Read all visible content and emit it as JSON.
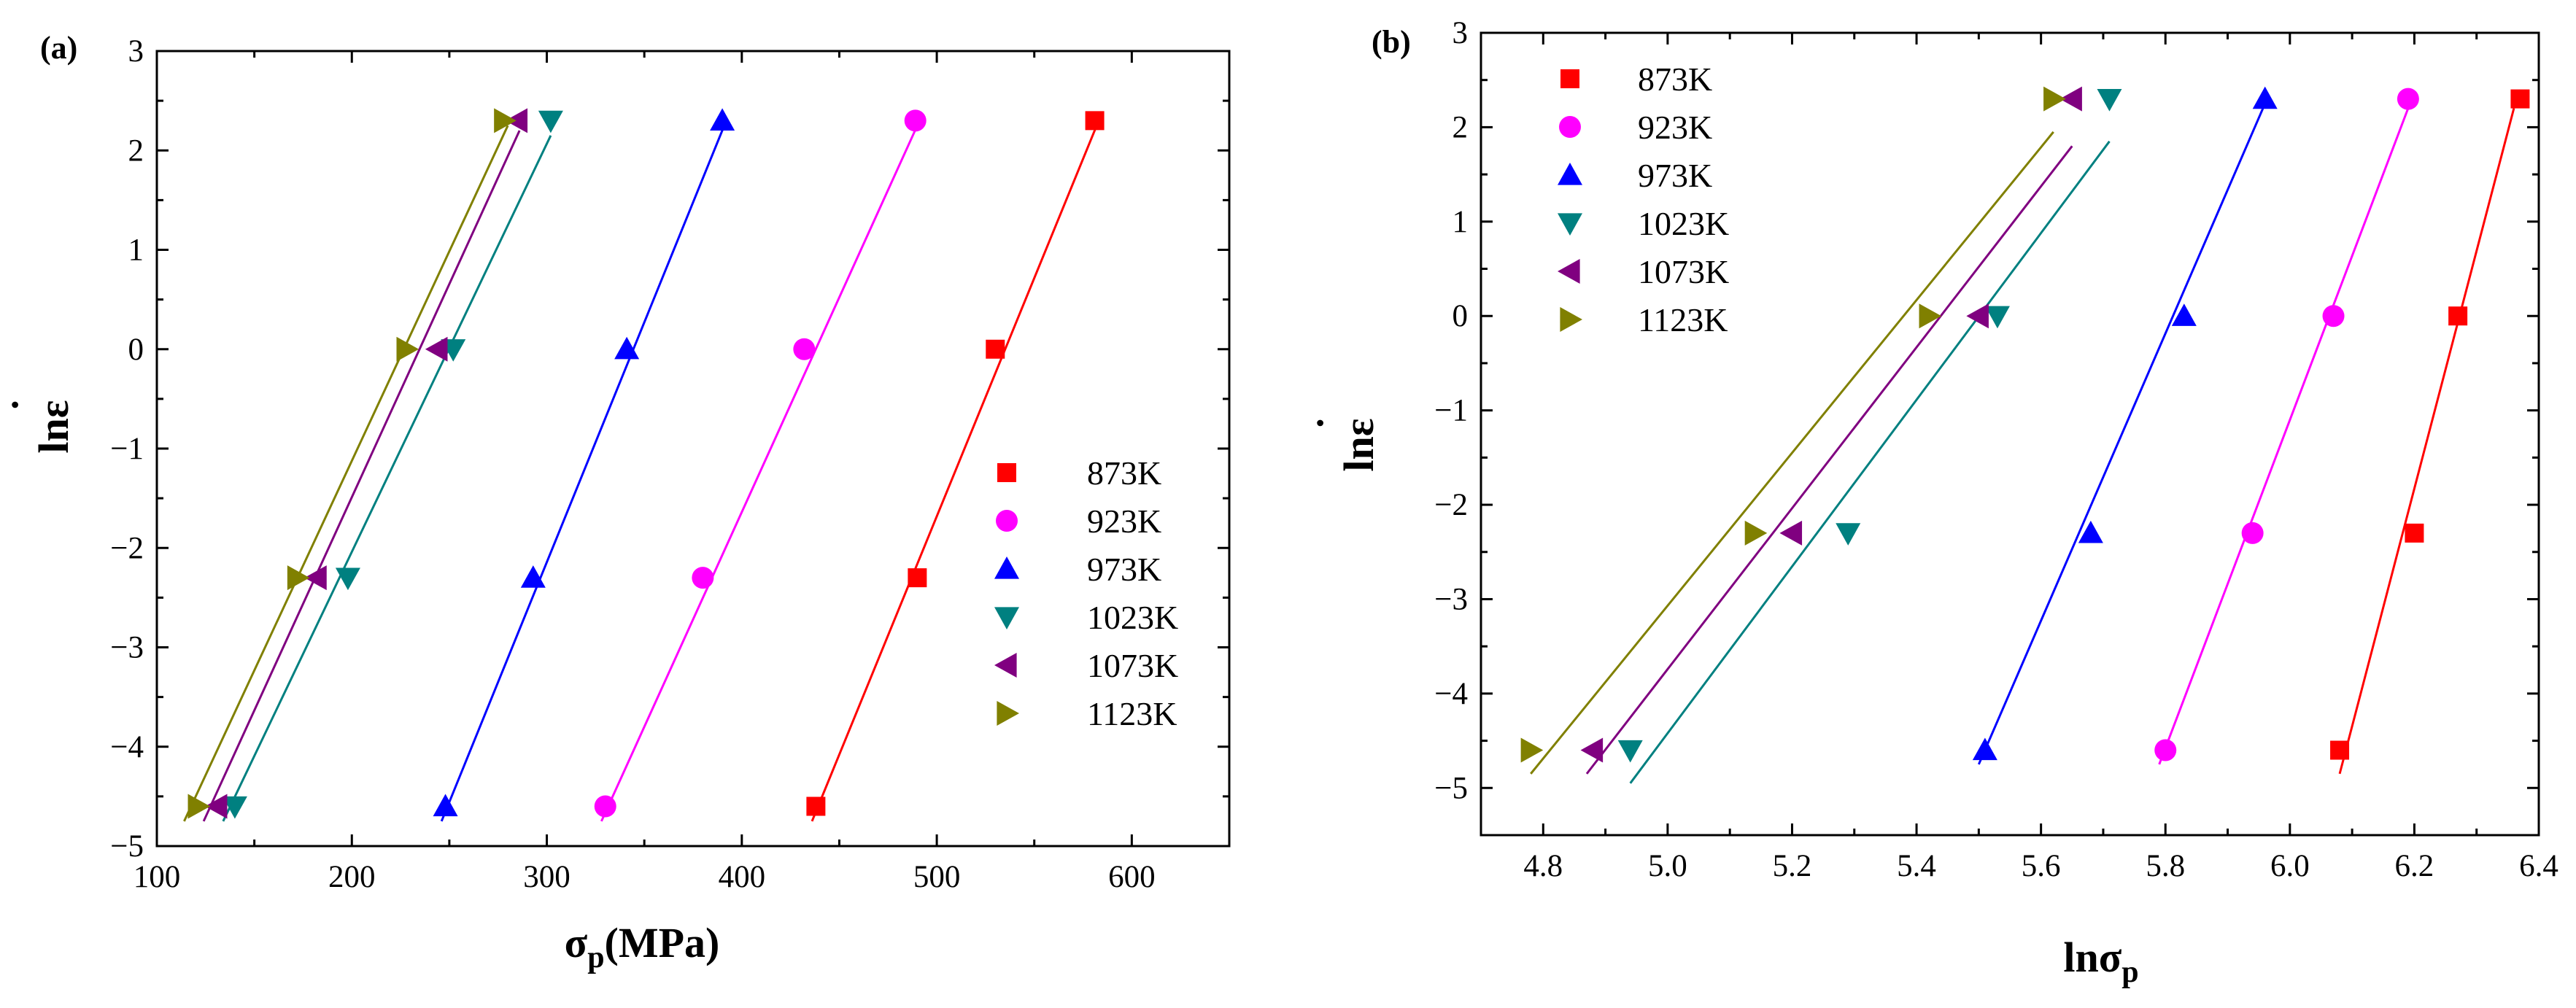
{
  "chart_data": [
    {
      "panel_label": "(a)",
      "type": "scatter",
      "xlabel": {
        "main": "σ",
        "sub": "p",
        "rest": "(MPa)"
      },
      "ylabel": {
        "main": "lnε",
        "dot": "˙"
      },
      "xlim": [
        100,
        650
      ],
      "ylim": [
        -5,
        3
      ],
      "xticks": [
        100,
        200,
        300,
        400,
        500,
        600
      ],
      "yticks": [
        -5,
        -4,
        -3,
        -2,
        -1,
        0,
        1,
        2,
        3
      ],
      "xtick_labels": [
        "100",
        "200",
        "300",
        "400",
        "500",
        "600"
      ],
      "ytick_labels": [
        "−5",
        "−4",
        "−3",
        "−2",
        "−1",
        "0",
        "1",
        "2",
        "3"
      ],
      "legend_position": "bottom-right",
      "series": [
        {
          "name": "873K",
          "marker": "square",
          "color": "#ff0000",
          "x": [
            438,
            490,
            530,
            581
          ],
          "y": [
            -4.6,
            -2.3,
            0,
            2.3
          ],
          "fit": [
            [
              436,
              -4.75
            ],
            [
              582,
              2.25
            ]
          ]
        },
        {
          "name": "923K",
          "marker": "circle",
          "color": "#ff00ff",
          "x": [
            330,
            380,
            432,
            489
          ],
          "y": [
            -4.6,
            -2.3,
            0,
            2.3
          ],
          "fit": [
            [
              328,
              -4.75
            ],
            [
              490,
              2.25
            ]
          ]
        },
        {
          "name": "973K",
          "marker": "triangle-up",
          "color": "#0000ff",
          "x": [
            248,
            293,
            341,
            390
          ],
          "y": [
            -4.6,
            -2.3,
            0,
            2.3
          ],
          "fit": [
            [
              246,
              -4.75
            ],
            [
              391,
              2.25
            ]
          ]
        },
        {
          "name": "1023K",
          "marker": "triangle-down",
          "color": "#008080",
          "x": [
            140,
            198,
            252,
            302
          ],
          "y": [
            -4.6,
            -2.3,
            0,
            2.3
          ],
          "fit": [
            [
              134,
              -4.75
            ],
            [
              302,
              2.15
            ]
          ]
        },
        {
          "name": "1073K",
          "marker": "triangle-left",
          "color": "#800080",
          "x": [
            131,
            182,
            244,
            285
          ],
          "y": [
            -4.6,
            -2.3,
            0,
            2.3
          ],
          "fit": [
            [
              124,
              -4.75
            ],
            [
              286,
              2.2
            ]
          ]
        },
        {
          "name": "1123K",
          "marker": "triangle-right",
          "color": "#808000",
          "x": [
            121,
            172,
            228,
            278
          ],
          "y": [
            -4.6,
            -2.3,
            0,
            2.3
          ],
          "fit": [
            [
              114,
              -4.75
            ],
            [
              280,
              2.25
            ]
          ]
        }
      ]
    },
    {
      "panel_label": "(b)",
      "type": "scatter",
      "xlabel": {
        "main": "lnσ",
        "sub": "p",
        "rest": ""
      },
      "ylabel": {
        "main": "lnε",
        "dot": "˙"
      },
      "xlim": [
        4.7,
        6.4
      ],
      "ylim": [
        -5.5,
        3
      ],
      "xticks": [
        4.8,
        5.0,
        5.2,
        5.4,
        5.6,
        5.8,
        6.0,
        6.2,
        6.4
      ],
      "yticks": [
        -5,
        -4,
        -3,
        -2,
        -1,
        0,
        1,
        2,
        3
      ],
      "xtick_labels": [
        "4.8",
        "5.0",
        "5.2",
        "5.4",
        "5.6",
        "5.8",
        "6.0",
        "6.2",
        "6.4"
      ],
      "ytick_labels": [
        "−5",
        "−4",
        "−3",
        "−2",
        "−1",
        "0",
        "1",
        "2",
        "3"
      ],
      "legend_position": "top-left",
      "series": [
        {
          "name": "873K",
          "marker": "square",
          "color": "#ff0000",
          "x": [
            6.08,
            6.2,
            6.27,
            6.37
          ],
          "y": [
            -4.6,
            -2.3,
            0,
            2.3
          ],
          "fit": [
            [
              6.08,
              -4.85
            ],
            [
              6.36,
              2.2
            ]
          ]
        },
        {
          "name": "923K",
          "marker": "circle",
          "color": "#ff00ff",
          "x": [
            5.8,
            5.94,
            6.07,
            6.19
          ],
          "y": [
            -4.6,
            -2.3,
            0,
            2.3
          ],
          "fit": [
            [
              5.79,
              -4.75
            ],
            [
              6.19,
              2.2
            ]
          ]
        },
        {
          "name": "973K",
          "marker": "triangle-up",
          "color": "#0000ff",
          "x": [
            5.51,
            5.68,
            5.83,
            5.96
          ],
          "y": [
            -4.6,
            -2.3,
            0,
            2.3
          ],
          "fit": [
            [
              5.5,
              -4.75
            ],
            [
              5.96,
              2.25
            ]
          ]
        },
        {
          "name": "1023K",
          "marker": "triangle-down",
          "color": "#008080",
          "x": [
            4.94,
            5.29,
            5.53,
            5.71
          ],
          "y": [
            -4.6,
            -2.3,
            0,
            2.3
          ],
          "fit": [
            [
              4.94,
              -4.95
            ],
            [
              5.71,
              1.85
            ]
          ]
        },
        {
          "name": "1073K",
          "marker": "triangle-left",
          "color": "#800080",
          "x": [
            4.88,
            5.2,
            5.5,
            5.65
          ],
          "y": [
            -4.6,
            -2.3,
            0,
            2.3
          ],
          "fit": [
            [
              4.87,
              -4.85
            ],
            [
              5.65,
              1.8
            ]
          ]
        },
        {
          "name": "1123K",
          "marker": "triangle-right",
          "color": "#808000",
          "x": [
            4.78,
            5.14,
            5.42,
            5.62
          ],
          "y": [
            -4.6,
            -2.3,
            0,
            2.3
          ],
          "fit": [
            [
              4.78,
              -4.85
            ],
            [
              5.62,
              1.95
            ]
          ]
        }
      ]
    }
  ]
}
